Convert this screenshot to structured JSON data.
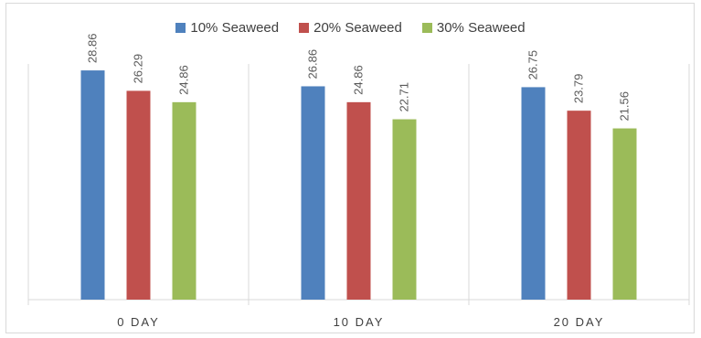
{
  "chart_data": {
    "type": "bar",
    "categories": [
      "0 DAY",
      "10 DAY",
      "20 DAY"
    ],
    "series": [
      {
        "name": "10% Seaweed",
        "color": "#4f81bd",
        "values": [
          28.86,
          26.86,
          26.75
        ]
      },
      {
        "name": "20% Seaweed",
        "color": "#c0504d",
        "values": [
          26.29,
          24.86,
          23.79
        ]
      },
      {
        "name": "30% Seaweed",
        "color": "#9bbb59",
        "values": [
          24.86,
          22.71,
          21.56
        ]
      }
    ],
    "ylim": [
      0,
      36
    ],
    "grid": "vertical separators between categories",
    "legend_position": "top-center"
  }
}
